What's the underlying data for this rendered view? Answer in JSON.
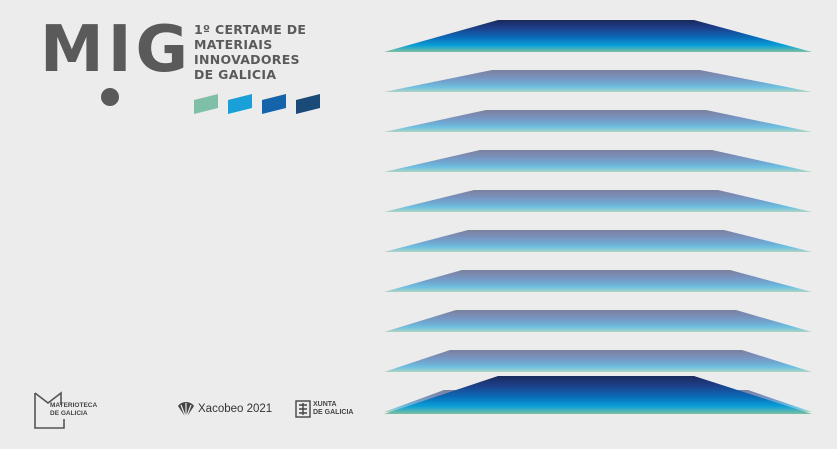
{
  "brand": {
    "logo_text": "MIG",
    "title_lines": [
      "1º CERTAME DE",
      "MATERIAIS",
      "INNOVADORES",
      "DE GALICIA"
    ]
  },
  "swatch_colors": [
    "#7fbfa8",
    "#1aa0d8",
    "#1464ac",
    "#1a4a78"
  ],
  "layer_gradient": {
    "top": "#1a2a5a",
    "bottom": "#7ec0a0"
  },
  "footer": {
    "materioteca_lines": [
      "MATERIOTECA",
      "DE GALICIA"
    ],
    "xacobeo": "Xacobeo 2021",
    "xunta_lines": [
      "XUNTA",
      "DE GALICIA"
    ]
  }
}
